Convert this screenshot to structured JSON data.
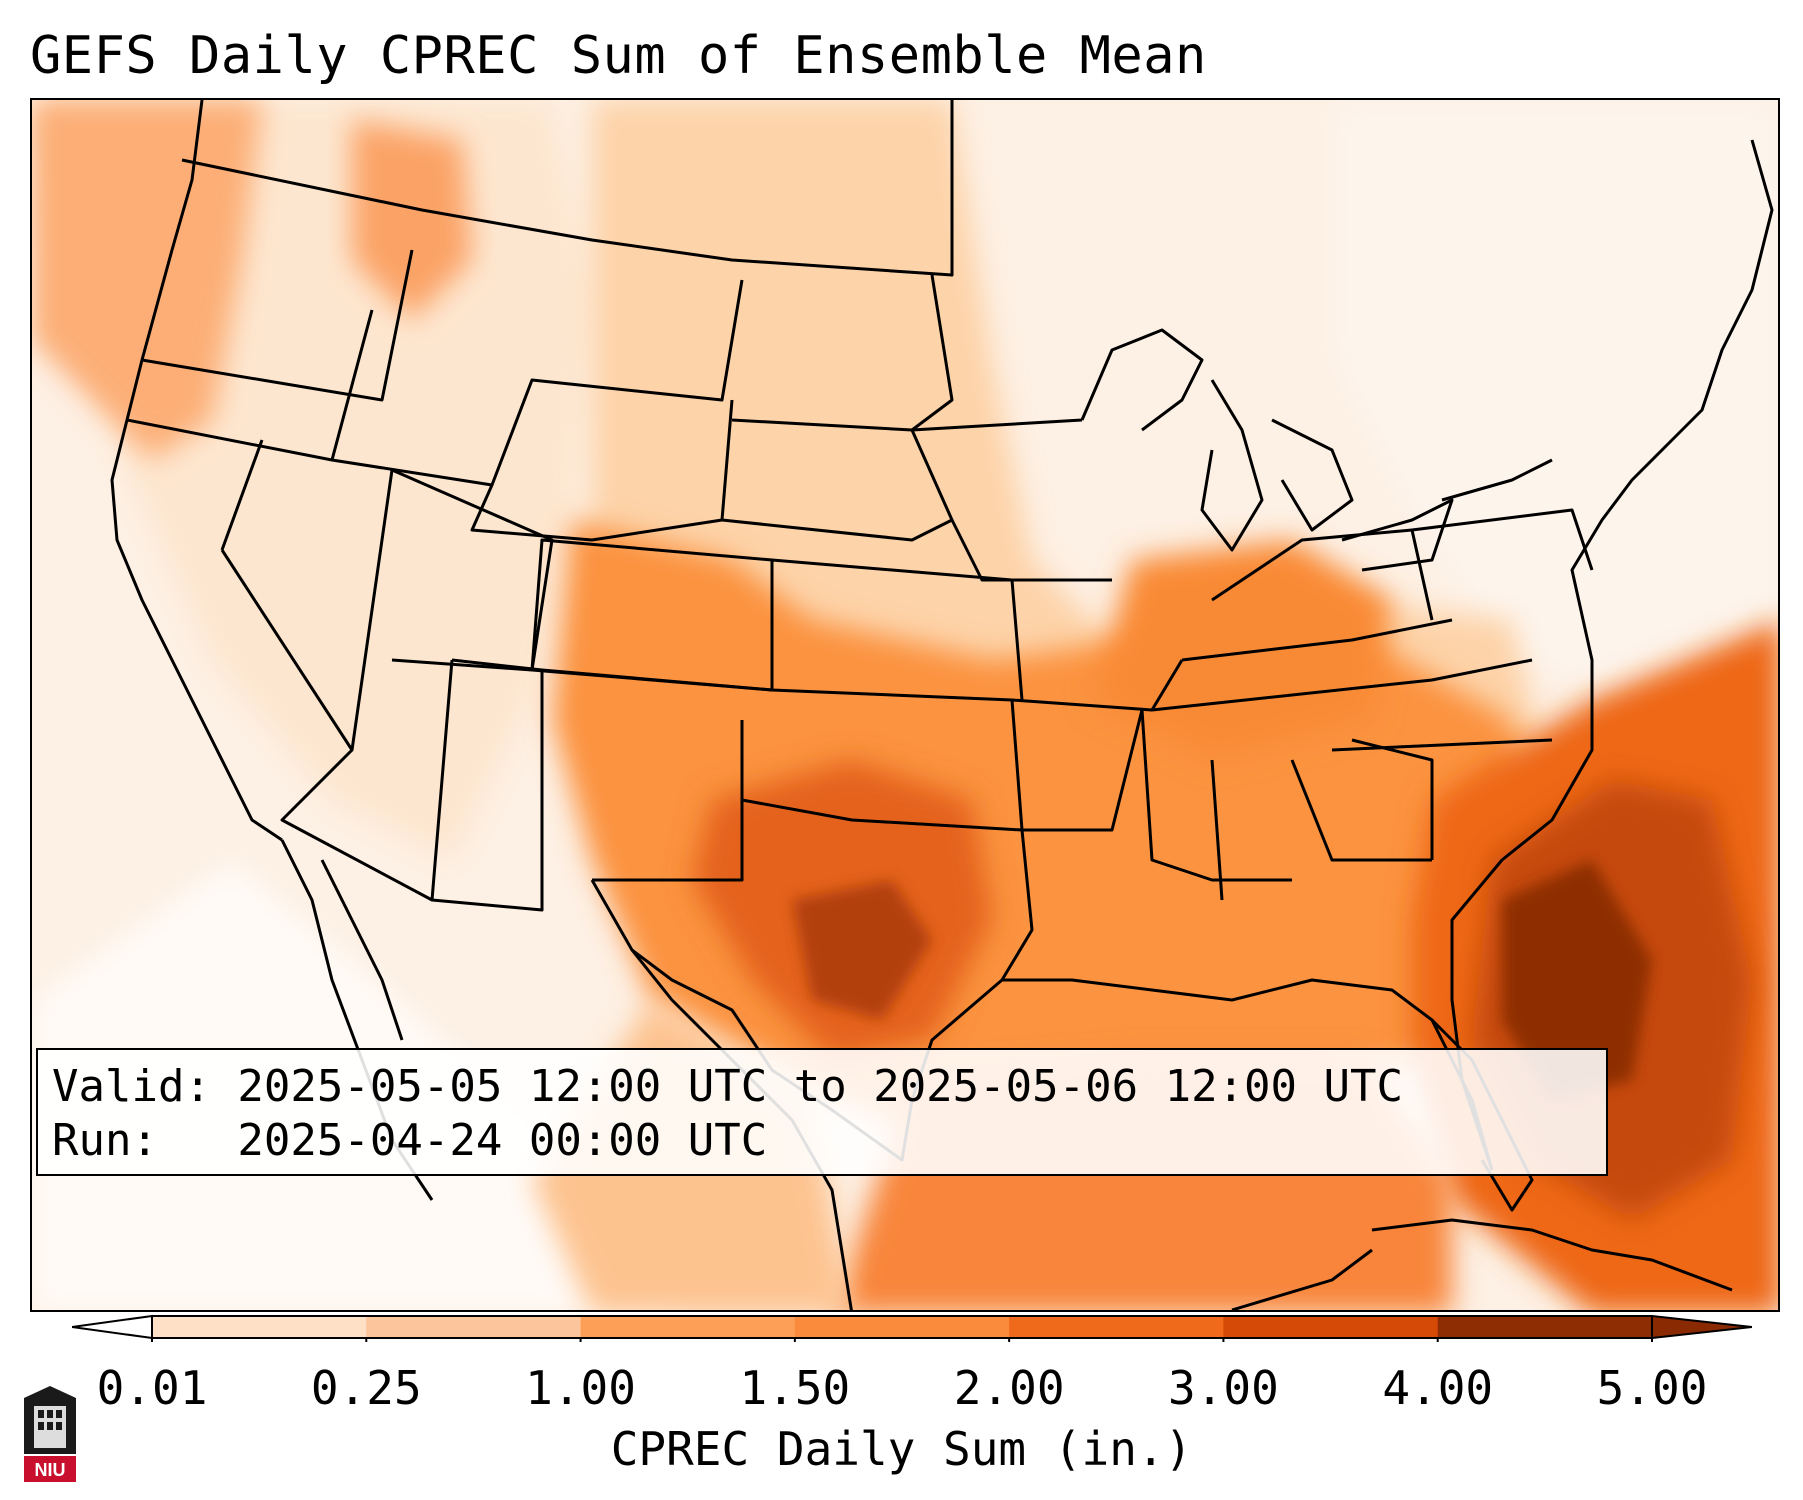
{
  "title": "GEFS Daily CPREC Sum of Ensemble Mean",
  "info": {
    "valid_line": "Valid: 2025-05-05 12:00 UTC to 2025-05-06 12:00 UTC",
    "run_line": "Run:   2025-04-24 00:00 UTC"
  },
  "colorbar": {
    "label": "CPREC Daily Sum (in.)",
    "ticks": [
      "0.01",
      "0.25",
      "1.00",
      "1.50",
      "2.00",
      "3.00",
      "4.00",
      "5.00"
    ],
    "colors": [
      "#fdf1e6",
      "#fde0c6",
      "#fdc59b",
      "#fd9f56",
      "#fb8b3c",
      "#ef6a1a",
      "#d54a06",
      "#8e2d04"
    ],
    "under_color": "#ffffff",
    "over_color": "#8a2a03"
  },
  "map": {
    "region": "CONUS",
    "outline_color": "#000000"
  },
  "logo": {
    "text": "NIU",
    "icon": "niu-logo-icon"
  }
}
